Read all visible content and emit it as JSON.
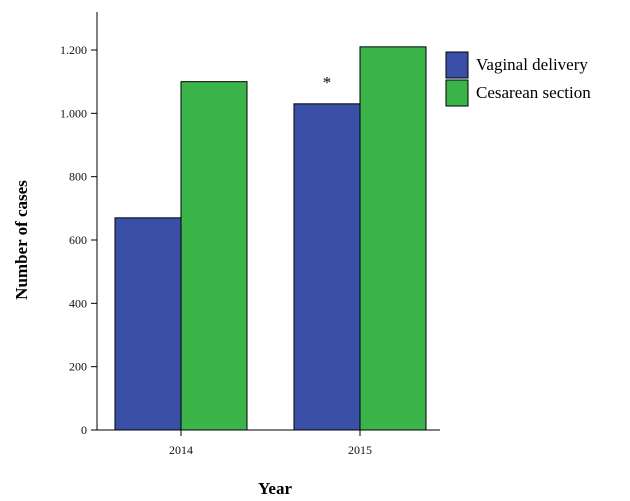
{
  "chart_data": {
    "type": "bar",
    "title": "",
    "xlabel": "Year",
    "ylabel": "Number of cases",
    "categories": [
      "2014",
      "2015"
    ],
    "series": [
      {
        "name": "Vaginal delivery",
        "values": [
          670,
          1030
        ],
        "color": "#3a4fa8"
      },
      {
        "name": "Cesarean section",
        "values": [
          1100,
          1210
        ],
        "color": "#3bb54a"
      }
    ],
    "ylim": [
      0,
      1300
    ],
    "yticks": [
      0,
      200,
      400,
      600,
      800,
      1000,
      1200
    ],
    "ytick_labels": [
      "0",
      "200",
      "400",
      "600",
      "800",
      "1.000",
      "1.200"
    ],
    "annotations": [
      {
        "text": "*",
        "category": "2015",
        "series": "Vaginal delivery"
      }
    ],
    "legend": "right",
    "grid": false
  }
}
